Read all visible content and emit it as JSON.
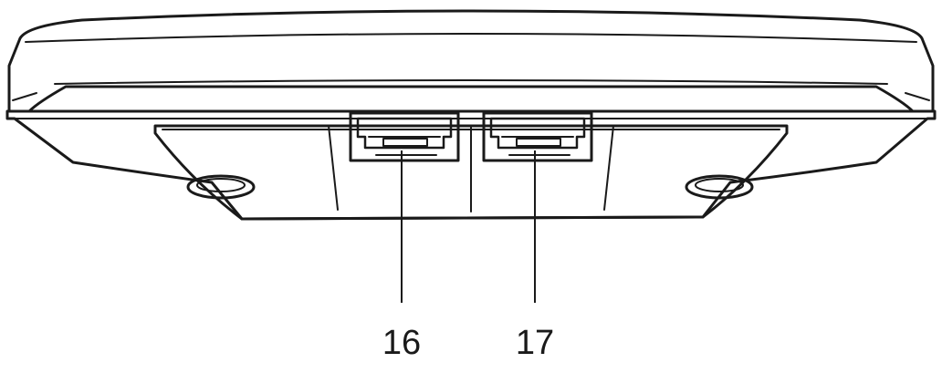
{
  "diagram": {
    "callouts": [
      {
        "id": "port-left",
        "label": "16"
      },
      {
        "id": "port-right",
        "label": "17"
      }
    ],
    "colors": {
      "stroke": "#1a1a1a",
      "fill": "#ffffff"
    }
  }
}
